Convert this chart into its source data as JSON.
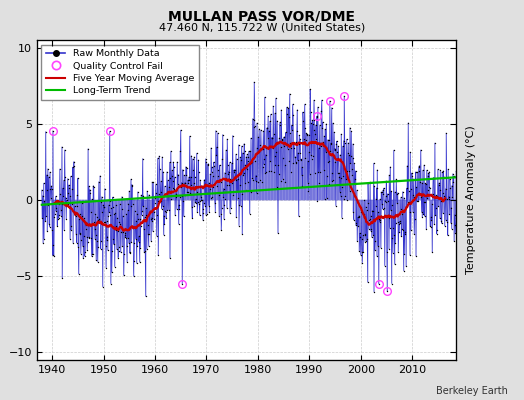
{
  "title": "MULLAN PASS VOR/DME",
  "subtitle": "47.460 N, 115.722 W (United States)",
  "ylabel": "Temperature Anomaly (°C)",
  "credit": "Berkeley Earth",
  "xlim": [
    1937,
    2018.5
  ],
  "ylim": [
    -10.5,
    10.5
  ],
  "yticks": [
    -10,
    -5,
    0,
    5,
    10
  ],
  "xticks": [
    1940,
    1950,
    1960,
    1970,
    1980,
    1990,
    2000,
    2010
  ],
  "background_color": "#e0e0e0",
  "plot_bg_color": "#ffffff",
  "raw_line_color": "#3333cc",
  "raw_marker_color": "#000000",
  "moving_avg_color": "#cc0000",
  "trend_color": "#00bb00",
  "qc_fail_color": "#ff44ff",
  "seed": 12
}
